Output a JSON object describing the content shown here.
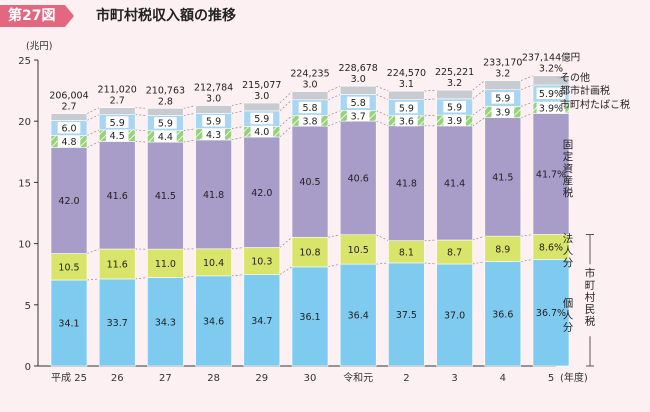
{
  "header": {
    "badge": "第27図",
    "title": "市町村税収入額の推移"
  },
  "colors": {
    "kojin": "#7ecbef",
    "hojin": "#d9e56a",
    "kotei": "#a89cc9",
    "tabako": "#97d17a",
    "toshi": "#a8d5f2",
    "sonota": "#c8ccd0"
  },
  "chart_data": {
    "type": "bar",
    "stacked": true,
    "yunit": "(兆円)",
    "xunit": "(年度)",
    "ylim": [
      0,
      25
    ],
    "yticks": [
      0,
      5,
      10,
      15,
      20,
      25
    ],
    "grid": false,
    "categories": [
      "平成 25",
      "26",
      "27",
      "28",
      "29",
      "30",
      "令和元",
      "2",
      "3",
      "4",
      "5"
    ],
    "totals": [
      "206,004",
      "211,020",
      "210,763",
      "212,784",
      "215,077",
      "224,235",
      "228,678",
      "224,570",
      "225,221",
      "233,170",
      "237,144"
    ],
    "total_suffix_last": "億円",
    "total_values": [
      20.6004,
      21.102,
      21.0763,
      21.2784,
      21.5077,
      22.4235,
      22.8678,
      22.457,
      22.5221,
      23.317,
      23.7144
    ],
    "series": [
      {
        "key": "kojin",
        "labels": [
          "34.1",
          "33.7",
          "34.3",
          "34.6",
          "34.7",
          "36.1",
          "36.4",
          "37.5",
          "37.0",
          "36.6",
          "36.7%"
        ]
      },
      {
        "key": "hojin",
        "labels": [
          "10.5",
          "11.6",
          "11.0",
          "10.4",
          "10.3",
          "10.8",
          "10.5",
          "8.1",
          "8.7",
          "8.9",
          "8.6%"
        ]
      },
      {
        "key": "kotei",
        "labels": [
          "42.0",
          "41.6",
          "41.5",
          "41.8",
          "42.0",
          "40.5",
          "40.6",
          "41.8",
          "41.4",
          "41.5",
          "41.7%"
        ]
      },
      {
        "key": "tabako",
        "labels": [
          "4.8",
          "4.5",
          "4.4",
          "4.3",
          "4.0",
          "3.8",
          "3.7",
          "3.6",
          "3.9",
          "3.9",
          "3.9%"
        ]
      },
      {
        "key": "toshi",
        "labels": [
          "6.0",
          "5.9",
          "5.9",
          "5.9",
          "5.9",
          "5.8",
          "5.8",
          "5.9",
          "5.9",
          "5.9",
          "5.9%"
        ]
      },
      {
        "key": "sonota",
        "labels": [
          "2.7",
          "2.7",
          "2.8",
          "3.0",
          "3.0",
          "3.0",
          "3.0",
          "3.1",
          "3.2",
          "3.2",
          "3.2%"
        ]
      }
    ],
    "legend": {
      "sonota": "その他",
      "toshi": "都市計画税",
      "tabako": "市町村たばこ税",
      "kotei": "固定資産税",
      "hojin": "法人分",
      "kojin": "個人分",
      "shiminzei": "市町村民税"
    }
  }
}
